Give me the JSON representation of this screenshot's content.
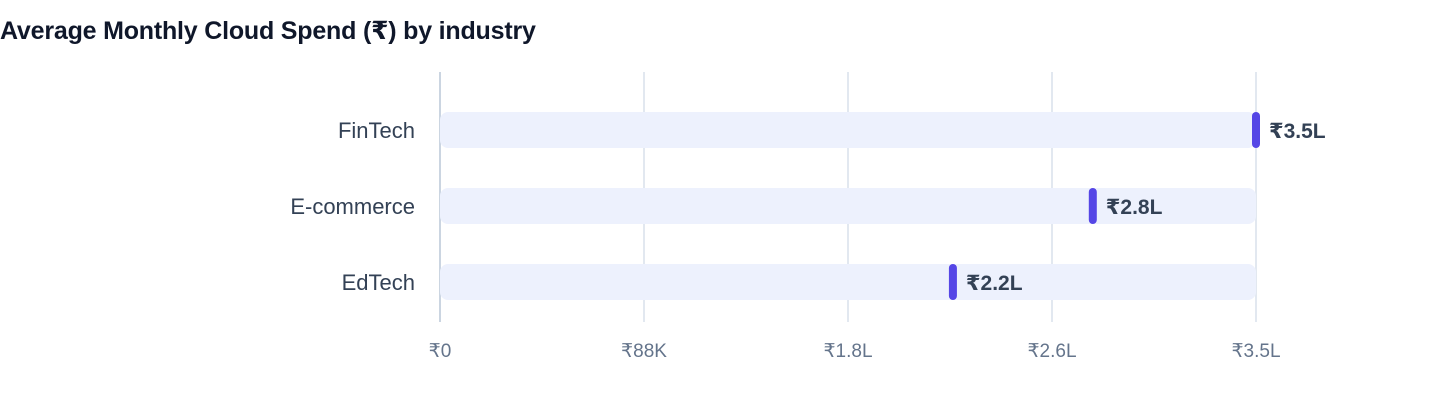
{
  "title": "Average Monthly Cloud Spend (₹) by industry",
  "colors": {
    "track": "#edf1fd",
    "marker": "#5546e6",
    "grid": "#e2e8f0",
    "axis": "#cbd5e1"
  },
  "chart_data": {
    "type": "bar",
    "title": "Average Monthly Cloud Spend (₹) by industry",
    "xlabel": "",
    "ylabel": "",
    "categories": [
      "FinTech",
      "E-commerce",
      "EdTech"
    ],
    "values": [
      350000,
      280000,
      220000
    ],
    "value_labels": [
      "₹3.5L",
      "₹2.8L",
      "₹2.2L"
    ],
    "xlim": [
      0,
      350000
    ],
    "ticks": [
      {
        "value": 0,
        "label": "₹0"
      },
      {
        "value": 87500,
        "label": "₹88K"
      },
      {
        "value": 175000,
        "label": "₹1.8L"
      },
      {
        "value": 262500,
        "label": "₹2.6L"
      },
      {
        "value": 350000,
        "label": "₹3.5L"
      }
    ],
    "grid": true,
    "legend": "none"
  }
}
